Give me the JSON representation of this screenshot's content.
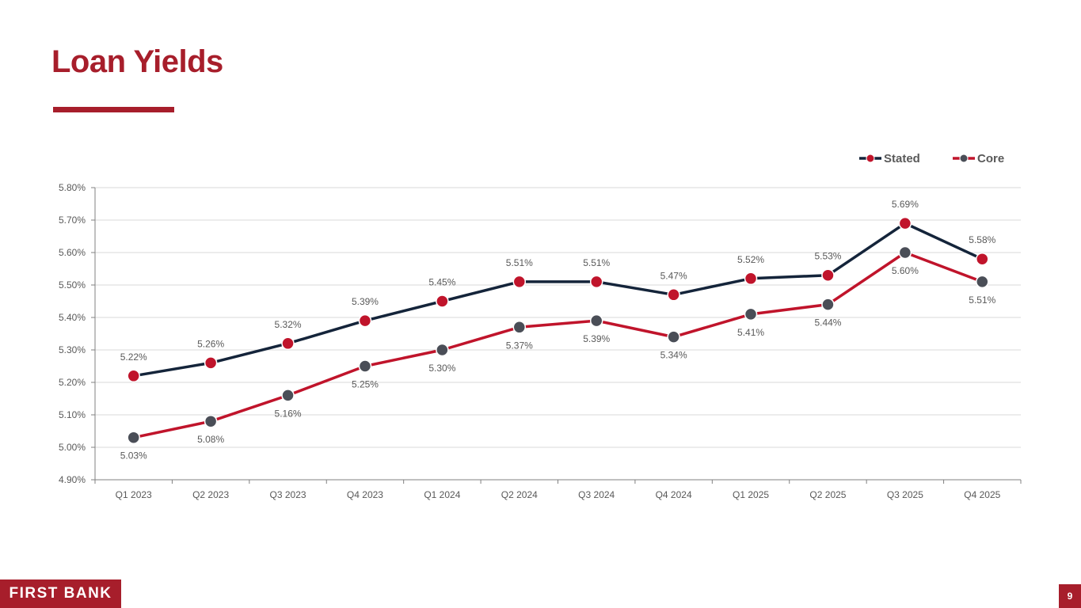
{
  "page": {
    "title": "Loan Yields",
    "logo_text": "FIRST BANK",
    "page_number": "9"
  },
  "colors": {
    "brand_red": "#a71e2b",
    "navy": "#14243a",
    "marker_red": "#c0142b",
    "marker_gray": "#4a4e57",
    "grid": "#d9d9d9",
    "axis_text": "#595959"
  },
  "chart_data": {
    "type": "line",
    "categories": [
      "Q1 2023",
      "Q2 2023",
      "Q3 2023",
      "Q4 2023",
      "Q1 2024",
      "Q2 2024",
      "Q3 2024",
      "Q4 2024",
      "Q1 2025",
      "Q2 2025",
      "Q3 2025",
      "Q4 2025"
    ],
    "series": [
      {
        "name": "Stated",
        "values": [
          5.22,
          5.26,
          5.32,
          5.39,
          5.45,
          5.51,
          5.51,
          5.47,
          5.52,
          5.53,
          5.69,
          5.58
        ],
        "labels": [
          "5.22%",
          "5.26%",
          "5.32%",
          "5.39%",
          "5.45%",
          "5.51%",
          "5.51%",
          "5.47%",
          "5.52%",
          "5.53%",
          "5.69%",
          "5.58%"
        ],
        "line_color": "#14243a",
        "marker_color": "#c0142b",
        "label_position": "above"
      },
      {
        "name": "Core",
        "values": [
          5.03,
          5.08,
          5.16,
          5.25,
          5.3,
          5.37,
          5.39,
          5.34,
          5.41,
          5.44,
          5.6,
          5.51
        ],
        "labels": [
          "5.03%",
          "5.08%",
          "5.16%",
          "5.25%",
          "5.30%",
          "5.37%",
          "5.39%",
          "5.34%",
          "5.41%",
          "5.44%",
          "5.60%",
          "5.51%"
        ],
        "line_color": "#c0142b",
        "marker_color": "#4a4e57",
        "label_position": "below"
      }
    ],
    "ylim": [
      4.9,
      5.8
    ],
    "yticks": [
      "4.90%",
      "5.00%",
      "5.10%",
      "5.20%",
      "5.30%",
      "5.40%",
      "5.50%",
      "5.60%",
      "5.70%",
      "5.80%"
    ],
    "grid": true,
    "legend_position": "top-right"
  }
}
